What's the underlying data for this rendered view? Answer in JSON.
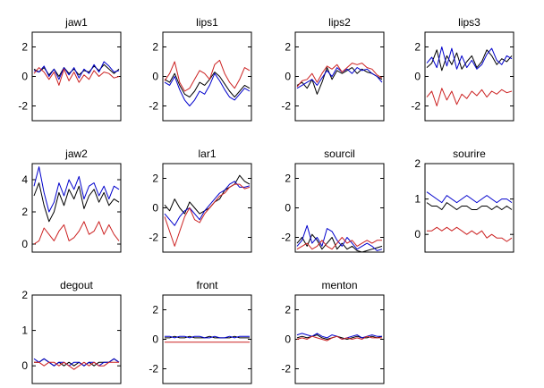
{
  "figure": {
    "background": "#ffffff"
  },
  "colors": {
    "black": "#000000",
    "blue": "#0000cc",
    "red": "#cc2222"
  },
  "chart_data": [
    {
      "type": "line",
      "title": "jaw1",
      "ylim": [
        -3,
        3
      ],
      "yticks": [
        2,
        0,
        -2
      ],
      "tick_labels": [
        "2",
        "0",
        "-2"
      ],
      "series": [
        {
          "color": "#000000",
          "values": [
            0.5,
            0.3,
            0.6,
            0.1,
            0.5,
            0.0,
            0.6,
            0.2,
            0.5,
            0.1,
            0.4,
            0.3,
            0.7,
            0.4,
            0.8,
            0.5,
            0.2,
            0.5
          ]
        },
        {
          "color": "#0000cc",
          "values": [
            0.4,
            0.3,
            0.7,
            0.0,
            0.5,
            -0.2,
            0.6,
            0.1,
            0.6,
            -0.1,
            0.5,
            0.2,
            0.8,
            0.3,
            1.0,
            0.7,
            0.3,
            0.4
          ]
        },
        {
          "color": "#cc2222",
          "values": [
            0.2,
            0.6,
            0.3,
            -0.2,
            0.3,
            -0.6,
            0.5,
            -0.3,
            0.3,
            -0.4,
            0.1,
            -0.2,
            0.4,
            0.0,
            0.3,
            0.2,
            -0.1,
            0.0
          ]
        }
      ]
    },
    {
      "type": "line",
      "title": "lips1",
      "ylim": [
        -3,
        3
      ],
      "yticks": [
        2,
        0,
        -2
      ],
      "tick_labels": [
        "2",
        "0",
        "-2"
      ],
      "series": [
        {
          "color": "#000000",
          "values": [
            -0.2,
            -0.4,
            0.2,
            -0.6,
            -1.2,
            -1.4,
            -1.0,
            -0.4,
            -0.6,
            -0.2,
            0.3,
            0.0,
            -0.5,
            -1.0,
            -1.4,
            -1.0,
            -0.6,
            -0.8
          ]
        },
        {
          "color": "#0000cc",
          "values": [
            -0.4,
            -0.6,
            0.0,
            -0.9,
            -1.6,
            -2.0,
            -1.6,
            -1.0,
            -1.2,
            -0.6,
            0.2,
            -0.3,
            -0.9,
            -1.4,
            -1.6,
            -1.2,
            -0.8,
            -1.0
          ]
        },
        {
          "color": "#cc2222",
          "values": [
            -0.3,
            0.2,
            1.0,
            -0.4,
            -1.0,
            -0.8,
            -0.2,
            0.4,
            0.2,
            -0.2,
            0.8,
            1.1,
            0.2,
            -0.4,
            -0.8,
            -0.2,
            0.6,
            0.4
          ]
        }
      ]
    },
    {
      "type": "line",
      "title": "lips2",
      "ylim": [
        -3,
        3
      ],
      "yticks": [
        2,
        0,
        -2
      ],
      "tick_labels": [
        "2",
        "0",
        "-2"
      ],
      "series": [
        {
          "color": "#000000",
          "values": [
            -0.6,
            -0.4,
            -0.8,
            -0.2,
            -1.2,
            -0.4,
            0.6,
            -0.2,
            0.4,
            0.2,
            0.4,
            0.6,
            0.2,
            0.5,
            0.3,
            0.2,
            0.0,
            -0.2
          ]
        },
        {
          "color": "#0000cc",
          "values": [
            -0.8,
            -0.6,
            -0.4,
            -0.2,
            -0.6,
            -0.1,
            0.4,
            0.0,
            0.6,
            0.3,
            0.5,
            0.2,
            0.6,
            0.4,
            0.5,
            0.2,
            0.0,
            -0.4
          ]
        },
        {
          "color": "#cc2222",
          "values": [
            -0.7,
            -0.3,
            -0.2,
            0.2,
            -0.4,
            0.2,
            0.7,
            0.5,
            0.8,
            0.3,
            0.6,
            0.9,
            0.8,
            0.9,
            0.6,
            0.5,
            0.1,
            -0.1
          ]
        }
      ]
    },
    {
      "type": "line",
      "title": "lips3",
      "ylim": [
        -3,
        3
      ],
      "yticks": [
        2,
        0,
        -2
      ],
      "tick_labels": [
        "2",
        "0",
        "-2"
      ],
      "series": [
        {
          "color": "#000000",
          "values": [
            0.6,
            0.9,
            1.8,
            0.4,
            1.4,
            0.8,
            1.6,
            0.5,
            1.0,
            1.4,
            0.6,
            1.0,
            1.8,
            1.4,
            0.8,
            1.2,
            1.0,
            1.4
          ]
        },
        {
          "color": "#0000cc",
          "values": [
            0.9,
            1.3,
            0.6,
            2.0,
            0.7,
            1.9,
            0.5,
            1.4,
            0.6,
            1.1,
            0.5,
            0.8,
            1.5,
            1.9,
            1.1,
            0.8,
            1.4,
            1.2
          ]
        },
        {
          "color": "#cc2222",
          "values": [
            -1.4,
            -1.0,
            -2.0,
            -0.8,
            -1.6,
            -1.0,
            -1.9,
            -1.2,
            -1.5,
            -1.0,
            -1.3,
            -0.9,
            -1.4,
            -1.0,
            -1.2,
            -0.9,
            -1.1,
            -1.0
          ]
        }
      ]
    },
    {
      "type": "line",
      "title": "jaw2",
      "ylim": [
        -0.5,
        5
      ],
      "yticks": [
        4,
        2,
        0
      ],
      "tick_labels": [
        "4",
        "2",
        "0"
      ],
      "series": [
        {
          "color": "#000000",
          "values": [
            3.0,
            3.8,
            2.4,
            1.4,
            2.0,
            3.2,
            2.4,
            3.4,
            2.8,
            3.6,
            2.2,
            3.0,
            3.4,
            2.6,
            3.2,
            2.4,
            2.8,
            2.6
          ]
        },
        {
          "color": "#0000cc",
          "values": [
            3.6,
            4.8,
            3.2,
            2.0,
            2.6,
            3.8,
            3.0,
            4.0,
            3.4,
            4.2,
            2.8,
            3.6,
            3.8,
            3.0,
            3.6,
            2.8,
            3.6,
            3.4
          ]
        },
        {
          "color": "#cc2222",
          "values": [
            0.0,
            0.2,
            1.0,
            0.6,
            0.2,
            0.8,
            1.2,
            0.2,
            0.4,
            0.8,
            1.4,
            0.6,
            0.8,
            1.4,
            0.6,
            1.2,
            0.6,
            0.2
          ]
        }
      ]
    },
    {
      "type": "line",
      "title": "lar1",
      "ylim": [
        -3,
        3
      ],
      "yticks": [
        2,
        0,
        -2
      ],
      "tick_labels": [
        "2",
        "0",
        "-2"
      ],
      "series": [
        {
          "color": "#000000",
          "values": [
            0.2,
            -0.2,
            0.6,
            0.0,
            -0.4,
            0.4,
            0.0,
            -0.4,
            -0.2,
            0.0,
            0.4,
            0.6,
            1.2,
            1.4,
            1.6,
            2.2,
            1.8,
            1.6
          ]
        },
        {
          "color": "#0000cc",
          "values": [
            -0.4,
            -0.8,
            -1.2,
            -0.6,
            -0.2,
            0.0,
            -0.4,
            -0.8,
            -0.2,
            0.2,
            0.6,
            1.0,
            1.2,
            1.6,
            1.8,
            1.4,
            1.4,
            1.5
          ]
        },
        {
          "color": "#cc2222",
          "values": [
            -0.6,
            -1.6,
            -2.6,
            -1.6,
            -0.6,
            0.0,
            -0.8,
            -1.0,
            -0.4,
            0.0,
            0.4,
            0.8,
            1.0,
            1.4,
            1.6,
            1.6,
            1.3,
            1.4
          ]
        }
      ]
    },
    {
      "type": "line",
      "title": "sourcil",
      "ylim": [
        -3,
        3
      ],
      "yticks": [
        2,
        0,
        -2
      ],
      "tick_labels": [
        "2",
        "0",
        "-2"
      ],
      "series": [
        {
          "color": "#000000",
          "values": [
            -2.4,
            -2.0,
            -2.6,
            -1.8,
            -2.2,
            -2.8,
            -2.4,
            -2.0,
            -2.8,
            -2.4,
            -2.8,
            -2.6,
            -2.9,
            -3.0,
            -2.9,
            -2.8,
            -2.7,
            -2.6
          ]
        },
        {
          "color": "#0000cc",
          "values": [
            -2.6,
            -2.2,
            -1.2,
            -2.4,
            -2.0,
            -2.6,
            -1.4,
            -1.6,
            -2.2,
            -2.6,
            -2.0,
            -2.4,
            -2.8,
            -2.6,
            -2.4,
            -2.6,
            -2.9,
            -2.8
          ]
        },
        {
          "color": "#cc2222",
          "values": [
            -2.8,
            -2.6,
            -2.4,
            -2.8,
            -2.6,
            -2.2,
            -2.6,
            -2.8,
            -2.4,
            -2.0,
            -2.4,
            -2.2,
            -2.6,
            -2.4,
            -2.2,
            -2.4,
            -2.2,
            -2.2
          ]
        }
      ]
    },
    {
      "type": "line",
      "title": "sourire",
      "ylim": [
        -0.5,
        2
      ],
      "yticks": [
        2,
        1,
        0
      ],
      "tick_labels": [
        "2",
        "1",
        "0"
      ],
      "series": [
        {
          "color": "#000000",
          "values": [
            0.9,
            0.8,
            0.8,
            0.7,
            0.9,
            0.8,
            0.7,
            0.8,
            0.8,
            0.7,
            0.7,
            0.8,
            0.8,
            0.7,
            0.8,
            0.7,
            0.8,
            0.7
          ]
        },
        {
          "color": "#0000cc",
          "values": [
            1.2,
            1.1,
            1.0,
            0.9,
            1.1,
            1.0,
            0.9,
            1.0,
            1.1,
            1.0,
            0.9,
            1.0,
            1.1,
            1.0,
            0.9,
            1.0,
            1.0,
            0.9
          ]
        },
        {
          "color": "#cc2222",
          "values": [
            0.1,
            0.1,
            0.2,
            0.1,
            0.2,
            0.1,
            0.2,
            0.1,
            0.0,
            0.1,
            0.0,
            0.1,
            -0.1,
            0.0,
            -0.1,
            -0.1,
            -0.2,
            -0.1
          ]
        }
      ]
    },
    {
      "type": "line",
      "title": "degout",
      "ylim": [
        -0.5,
        2
      ],
      "yticks": [
        2,
        1,
        0
      ],
      "tick_labels": [
        "2",
        "1",
        "0"
      ],
      "series": [
        {
          "color": "#000000",
          "values": [
            0.1,
            0.1,
            0.2,
            0.1,
            0.0,
            0.1,
            0.0,
            0.1,
            0.0,
            0.1,
            0.0,
            0.1,
            0.0,
            0.1,
            0.1,
            0.1,
            0.2,
            0.1
          ]
        },
        {
          "color": "#0000cc",
          "values": [
            0.2,
            0.1,
            0.2,
            0.1,
            0.0,
            0.1,
            0.1,
            0.0,
            0.1,
            0.1,
            0.0,
            0.1,
            0.1,
            0.0,
            0.1,
            0.1,
            0.2,
            0.1
          ]
        },
        {
          "color": "#cc2222",
          "values": [
            0.1,
            0.1,
            0.0,
            0.1,
            0.1,
            0.0,
            0.1,
            0.0,
            -0.1,
            0.0,
            0.1,
            0.0,
            0.1,
            0.0,
            0.0,
            0.1,
            0.1,
            0.1
          ]
        }
      ]
    },
    {
      "type": "line",
      "title": "front",
      "ylim": [
        -3,
        3
      ],
      "yticks": [
        2,
        0,
        -2
      ],
      "tick_labels": [
        "2",
        "0",
        "-2"
      ],
      "series": [
        {
          "color": "#000000",
          "values": [
            0.1,
            0.1,
            0.2,
            0.1,
            0.1,
            0.2,
            0.1,
            0.1,
            0.1,
            0.2,
            0.1,
            0.1,
            0.1,
            0.1,
            0.2,
            0.1,
            0.1,
            0.1
          ]
        },
        {
          "color": "#0000cc",
          "values": [
            0.2,
            0.2,
            0.1,
            0.2,
            0.2,
            0.1,
            0.2,
            0.2,
            0.1,
            0.1,
            0.2,
            0.1,
            0.1,
            0.2,
            0.1,
            0.2,
            0.2,
            0.2
          ]
        },
        {
          "color": "#cc2222",
          "values": [
            -0.2,
            -0.2,
            -0.2,
            -0.2,
            -0.2,
            -0.2,
            -0.2,
            -0.2,
            -0.2,
            -0.2,
            -0.2,
            -0.2,
            -0.2,
            -0.2,
            -0.2,
            -0.2,
            -0.2,
            -0.2
          ]
        }
      ]
    },
    {
      "type": "line",
      "title": "menton",
      "ylim": [
        -3,
        3
      ],
      "yticks": [
        2,
        0,
        -2
      ],
      "tick_labels": [
        "2",
        "0",
        "-2"
      ],
      "series": [
        {
          "color": "#000000",
          "values": [
            0.1,
            0.2,
            0.1,
            0.2,
            0.3,
            0.1,
            0.0,
            0.1,
            0.2,
            0.1,
            0.0,
            0.1,
            0.2,
            0.1,
            0.1,
            0.2,
            0.1,
            0.2
          ]
        },
        {
          "color": "#0000cc",
          "values": [
            0.3,
            0.4,
            0.3,
            0.2,
            0.4,
            0.2,
            0.1,
            0.3,
            0.2,
            0.0,
            0.1,
            0.2,
            0.3,
            0.1,
            0.2,
            0.3,
            0.2,
            0.2
          ]
        },
        {
          "color": "#cc2222",
          "values": [
            0.0,
            0.1,
            0.0,
            0.2,
            0.1,
            0.0,
            -0.1,
            0.1,
            0.2,
            0.0,
            0.1,
            0.0,
            0.1,
            0.0,
            0.2,
            0.1,
            0.1,
            0.1
          ]
        }
      ]
    }
  ]
}
